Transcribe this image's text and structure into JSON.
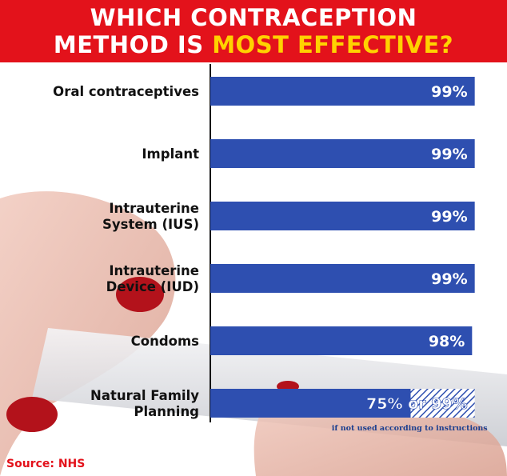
{
  "header": {
    "title_part1": "WHICH CONTRACEPTION",
    "title_part2": "METHOD IS ",
    "title_highlight": "MOST EFFECTIVE?"
  },
  "source": "Source: NHS",
  "colors": {
    "banner": "#e3121b",
    "highlight": "#ffd200",
    "bar": "#2e4fb0",
    "note": "#1c3f8f"
  },
  "chart_data": {
    "type": "bar",
    "orientation": "horizontal",
    "categories": [
      [
        "Oral contraceptives"
      ],
      [
        "Implant"
      ],
      [
        "Intrauterine",
        "System (IUS)"
      ],
      [
        "Intrauterine",
        "Device (IUD)"
      ],
      [
        "Condoms"
      ],
      [
        "Natural Family",
        "Planning"
      ]
    ],
    "values": [
      99,
      99,
      99,
      99,
      98,
      75
    ],
    "alt_values": [
      null,
      null,
      null,
      null,
      null,
      99
    ],
    "value_labels": [
      "99%",
      "99%",
      "99%",
      "99%",
      "98%",
      "75% or 99%"
    ],
    "annotation": "if not used according to instructions",
    "xlim": [
      0,
      100
    ],
    "xlabel": "",
    "ylabel": "",
    "title": "",
    "grid": false,
    "legend": "none"
  }
}
